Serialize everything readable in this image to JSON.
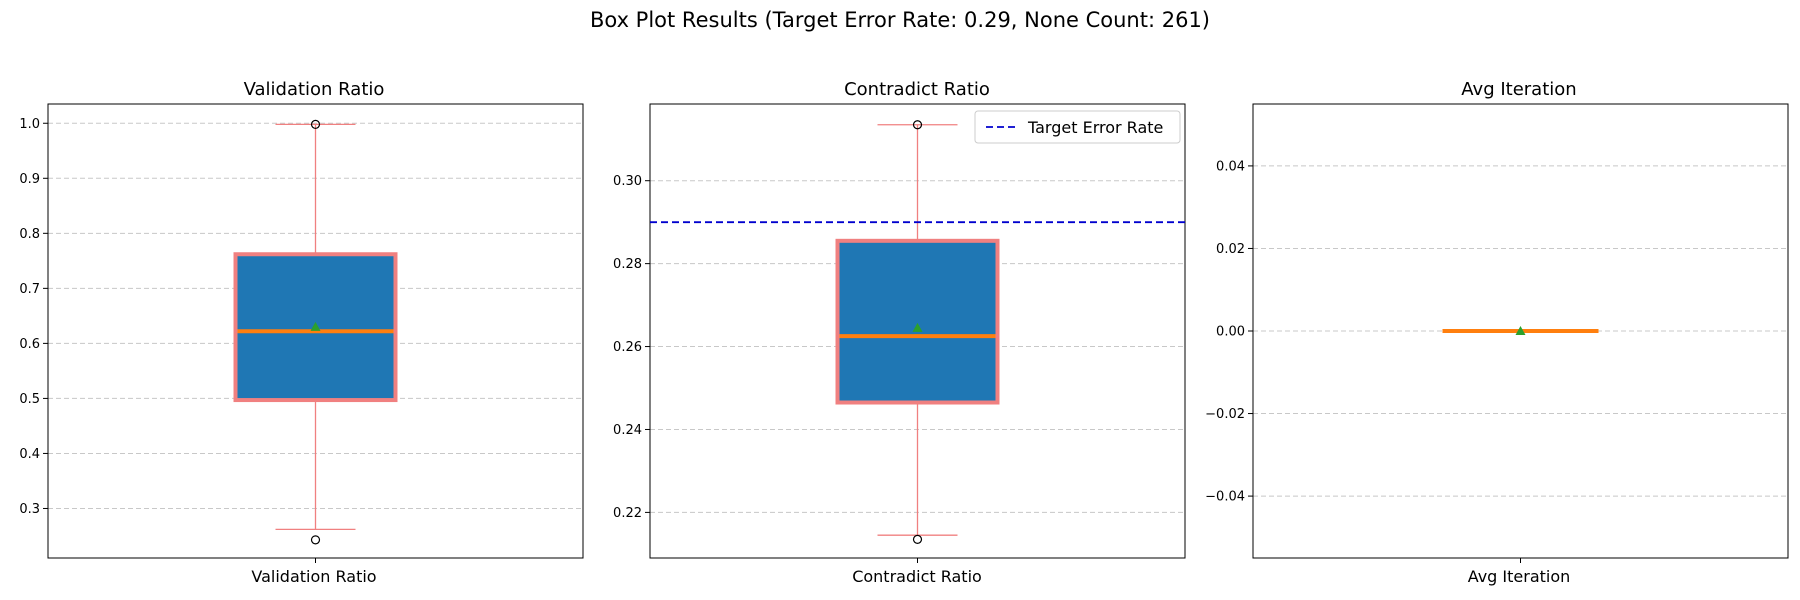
{
  "figure": {
    "suptitle": "Box Plot Results (Target Error Rate: 0.29, None Count: 261)"
  },
  "colors": {
    "box_fill": "#1f77b4",
    "box_edge": "#f08080",
    "whisker": "#f08080",
    "median": "#ff7f0e",
    "mean_marker": "#2ca02c",
    "target_line": "#0000cd",
    "grid": "#c8c8c8"
  },
  "chart_data": [
    {
      "type": "box",
      "title": "Validation Ratio",
      "category": "Validation Ratio",
      "ylim": [
        0.21,
        1.035
      ],
      "yticks": [
        0.3,
        0.4,
        0.5,
        0.6,
        0.7,
        0.8,
        0.9,
        1.0
      ],
      "ytick_labels": [
        "0.3",
        "0.4",
        "0.5",
        "0.6",
        "0.7",
        "0.8",
        "0.9",
        "1.0"
      ],
      "grid": "y-dashed",
      "box": {
        "whisker_low": 0.262,
        "q1": 0.497,
        "median": 0.622,
        "mean": 0.63,
        "q3": 0.762,
        "whisker_high": 0.998
      },
      "outliers": [
        0.243,
        0.998
      ]
    },
    {
      "type": "box",
      "title": "Contradict Ratio",
      "category": "Contradict Ratio",
      "ylim": [
        0.209,
        0.3185
      ],
      "yticks": [
        0.22,
        0.24,
        0.26,
        0.28,
        0.3
      ],
      "ytick_labels": [
        "0.22",
        "0.24",
        "0.26",
        "0.28",
        "0.30"
      ],
      "grid": "y-dashed",
      "box": {
        "whisker_low": 0.2145,
        "q1": 0.2465,
        "median": 0.2625,
        "mean": 0.2645,
        "q3": 0.2855,
        "whisker_high": 0.3135
      },
      "outliers": [
        0.2135,
        0.3135
      ],
      "hline": {
        "y": 0.29,
        "label": "Target Error Rate"
      },
      "legend": "top-right"
    },
    {
      "type": "box",
      "title": "Avg Iteration",
      "category": "Avg Iteration",
      "ylim": [
        -0.055,
        0.055
      ],
      "yticks": [
        -0.04,
        -0.02,
        0.0,
        0.02,
        0.04
      ],
      "ytick_labels": [
        "−0.04",
        "−0.02",
        "0.00",
        "0.02",
        "0.04"
      ],
      "grid": "y-dashed",
      "box": {
        "whisker_low": 0.0,
        "q1": 0.0,
        "median": 0.0,
        "mean": 0.0,
        "q3": 0.0,
        "whisker_high": 0.0
      },
      "outliers": []
    }
  ]
}
